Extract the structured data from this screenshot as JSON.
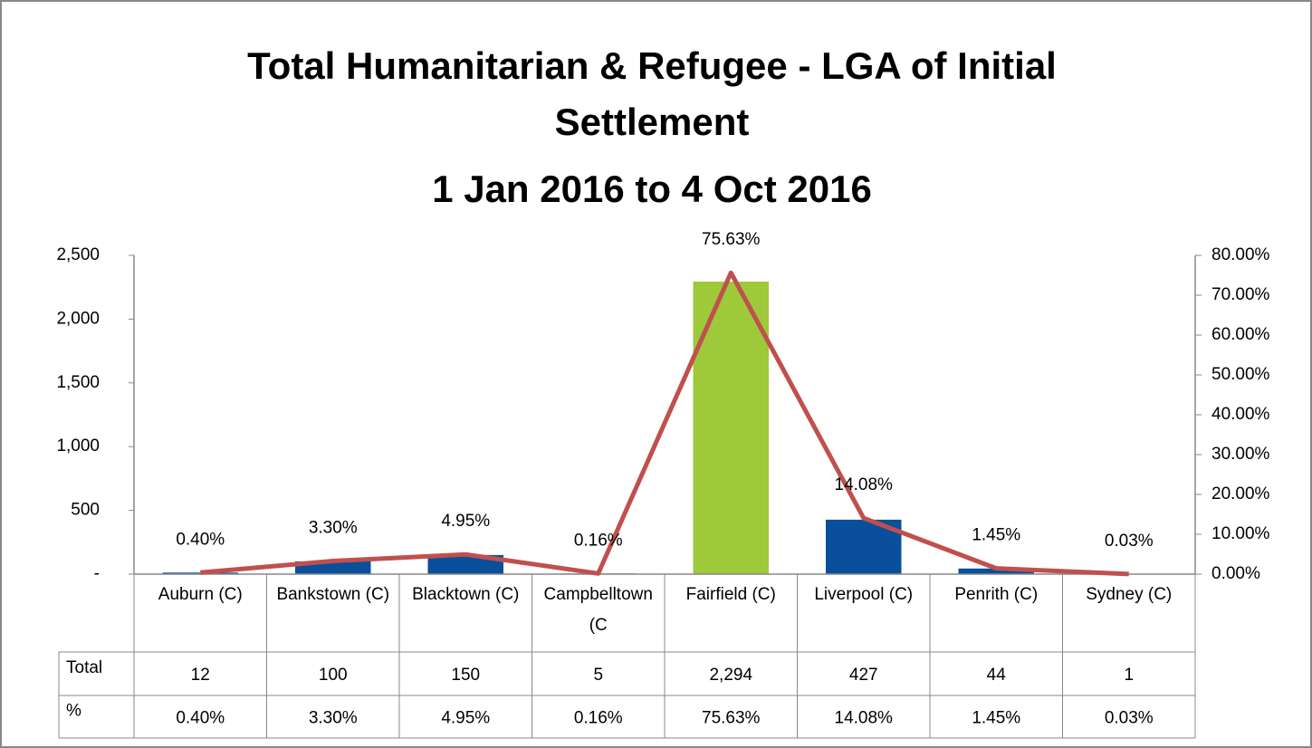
{
  "chart_data": {
    "type": "bar",
    "title": "Total Humanitarian & Refugee - LGA of Initial Settlement",
    "subtitle": "1 Jan 2016 to 4 Oct 2016",
    "categories": [
      "Auburn (C)",
      "Bankstown (C)",
      "Blacktown (C)",
      "Campbelltown (C",
      "Fairfield (C)",
      "Liverpool (C)",
      "Penrith (C)",
      "Sydney (C)"
    ],
    "series": [
      {
        "name": "Total",
        "type": "bar",
        "color": "#0a4f9c",
        "colors": [
          "#0a4f9c",
          "#0a4f9c",
          "#0a4f9c",
          "#0a4f9c",
          "#9dc93b",
          "#0a4f9c",
          "#0a4f9c",
          "#0a4f9c"
        ],
        "values": [
          12,
          100,
          150,
          5,
          2294,
          427,
          44,
          1
        ],
        "value_labels": [
          "12",
          "100",
          "150",
          "5",
          "2,294",
          "427",
          "44",
          "1"
        ]
      },
      {
        "name": "%",
        "type": "line",
        "axis": "y2",
        "color": "#c0504d",
        "values": [
          0.4,
          3.3,
          4.95,
          0.16,
          75.63,
          14.08,
          1.45,
          0.03
        ],
        "value_labels": [
          "0.40%",
          "3.30%",
          "4.95%",
          "0.16%",
          "75.63%",
          "14.08%",
          "1.45%",
          "0.03%"
        ]
      }
    ],
    "ylim": [
      0,
      2500
    ],
    "yticks": [
      {
        "value": 0,
        "label": "-"
      },
      500,
      {
        "value": 1000,
        "label": "1,000"
      },
      {
        "value": 1500,
        "label": "1,500"
      },
      {
        "value": 2000,
        "label": "2,000"
      },
      {
        "value": 2500,
        "label": "2,500"
      }
    ],
    "y2lim": [
      0,
      80
    ],
    "y2ticks": [
      {
        "value": 0,
        "label": "0.00%"
      },
      {
        "value": 10,
        "label": "10.00%"
      },
      {
        "value": 20,
        "label": "20.00%"
      },
      {
        "value": 30,
        "label": "30.00%"
      },
      {
        "value": 40,
        "label": "40.00%"
      },
      {
        "value": 50,
        "label": "50.00%"
      },
      {
        "value": 60,
        "label": "60.00%"
      },
      {
        "value": 70,
        "label": "70.00%"
      },
      {
        "value": 80,
        "label": "80.00%"
      }
    ],
    "grid": false
  }
}
